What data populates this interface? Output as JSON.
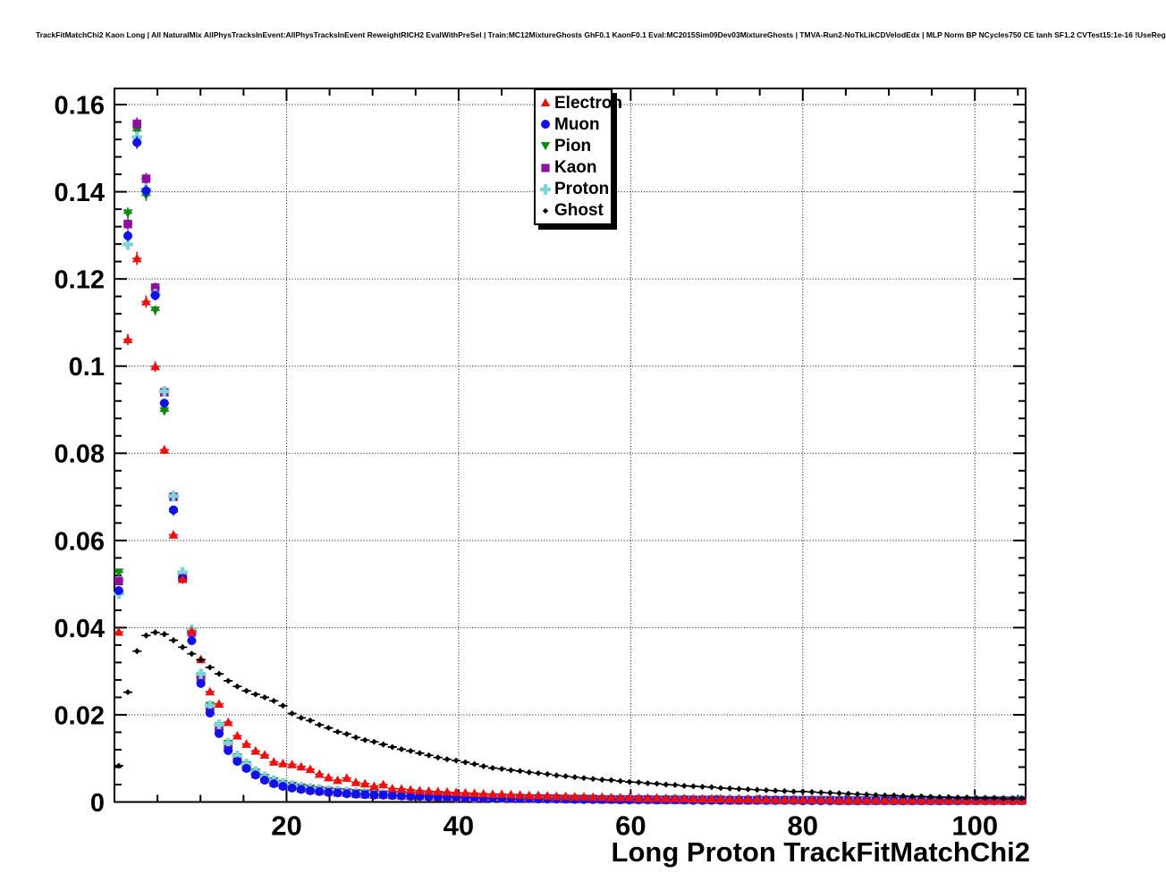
{
  "page": {
    "title": "TrackFitMatchChi2 Kaon Long | All NaturalMix AllPhysTracksInEvent:AllPhysTracksInEvent ReweightRICH2 EvalWithPreSel | Train:MC12MixtureGhosts GhF0.1 KaonF0.1 Eval:MC2015Sim09Dev03MixtureGhosts | TMVA-Run2-NoTkLikCDVelodEdx | MLP Norm BP NCycles750 CE tanh SF1.2 CVTest15:1e-16 !UseReg"
  },
  "chart_data": {
    "type": "scatter",
    "title": "TrackFitMatchChi2 Kaon Long | All NaturalMix AllPhysTracksInEvent:AllPhysTracksInEvent ReweightRICH2 EvalWithPreSel | Train:MC12MixtureGhosts GhF0.1 KaonF0.1 Eval:MC2015Sim09Dev03MixtureGhosts | TMVA-Run2-NoTkLikCDVelodEdx | MLP Norm BP NCycles750 CE tanh SF1.2 CVTest15:1e-16 !UseReg",
    "xlabel": "Long Proton TrackFitMatchChi2",
    "ylabel": "",
    "xlim": [
      0,
      105.9
    ],
    "ylim": [
      0,
      0.1637
    ],
    "grid": true,
    "grid_style": "dotted",
    "legend_position": "top-center-inside",
    "x_major_ticks": [
      20,
      40,
      60,
      80,
      100
    ],
    "x_tick_labels": [
      "20",
      "40",
      "60",
      "80",
      "100"
    ],
    "x_minor_step": 5,
    "y_major_ticks": [
      0,
      0.02,
      0.04,
      0.06,
      0.08,
      0.1,
      0.12,
      0.14,
      0.16
    ],
    "y_tick_labels": [
      "0",
      "0.02",
      "0.04",
      "0.06",
      "0.08",
      "0.1",
      "0.12",
      "0.14",
      "0.16"
    ],
    "y_minor_step": 0.004,
    "x": [
      0.5,
      1.56,
      2.62,
      3.68,
      4.74,
      5.8,
      6.86,
      7.92,
      8.98,
      10.04,
      11.1,
      12.16,
      13.22,
      14.28,
      15.34,
      16.4,
      17.46,
      18.52,
      19.58,
      20.64,
      21.7,
      22.76,
      23.82,
      24.88,
      25.94,
      27,
      28.06,
      29.12,
      30.18,
      31.24,
      32.3,
      33.36,
      34.42,
      35.48,
      36.54,
      37.6,
      38.66,
      39.72,
      40.78,
      41.84,
      42.9,
      43.96,
      45.02,
      46.08,
      47.14,
      48.2,
      49.26,
      50.32,
      51.38,
      52.44,
      53.5,
      54.56,
      55.62,
      56.68,
      57.74,
      58.8,
      59.86,
      60.92,
      61.98,
      63.04,
      64.1,
      65.16,
      66.22,
      67.28,
      68.34,
      69.4,
      70.46,
      71.52,
      72.58,
      73.64,
      74.7,
      75.76,
      76.82,
      77.88,
      78.94,
      80,
      81.06,
      82.12,
      83.18,
      84.24,
      85.3,
      86.36,
      87.42,
      88.48,
      89.54,
      90.6,
      91.66,
      92.72,
      93.78,
      94.84,
      95.9,
      96.96,
      98.02,
      99.08,
      100.14,
      101.2,
      102.26,
      103.32,
      104.38,
      105.44
    ],
    "series": [
      {
        "name": "Electron",
        "color": "#ec1010",
        "marker": "triangle-up",
        "values": [
          0.039,
          0.1061,
          0.1247,
          0.1148,
          0.0999,
          0.0808,
          0.0613,
          0.0511,
          0.0392,
          0.0327,
          0.0253,
          0.0225,
          0.0183,
          0.0152,
          0.0133,
          0.0117,
          0.0108,
          0.0092,
          0.0088,
          0.0086,
          0.0081,
          0.0075,
          0.0064,
          0.0056,
          0.005,
          0.0055,
          0.0045,
          0.0042,
          0.0036,
          0.004,
          0.0031,
          0.003,
          0.0028,
          0.0026,
          0.0025,
          0.0024,
          0.0023,
          0.0022,
          0.0021,
          0.002,
          0.0019,
          0.0018,
          0.0018,
          0.0017,
          0.0016,
          0.0015,
          0.0015,
          0.0014,
          0.0013,
          0.0013,
          0.0012,
          0.0012,
          0.0011,
          0.0011,
          0.001,
          0.001,
          0.001,
          0.0009,
          0.0009,
          0.0009,
          0.0008,
          0.0008,
          0.0008,
          0.0007,
          0.0007,
          0.0007,
          0.0007,
          0.0006,
          0.0006,
          0.0006,
          0.0006,
          0.0006,
          0.0005,
          0.0005,
          0.0005,
          0.0005,
          0.0005,
          0.0005,
          0.0005,
          0.0004,
          0.0004,
          0.0004,
          0.0004,
          0.0004,
          0.0004,
          0.0004,
          0.0004,
          0.0004,
          0.0004,
          0.0004,
          0.0004,
          0.0004,
          0.0004,
          0.0003,
          0.0003,
          0.0003,
          0.0003,
          0.0003,
          0.0003,
          0.0003
        ]
      },
      {
        "name": "Muon",
        "color": "#1212e8",
        "marker": "circle",
        "values": [
          0.0485,
          0.1299,
          0.1513,
          0.1402,
          0.1162,
          0.0915,
          0.067,
          0.0513,
          0.037,
          0.0272,
          0.0204,
          0.0157,
          0.0118,
          0.0093,
          0.0077,
          0.0062,
          0.005,
          0.0042,
          0.0036,
          0.0032,
          0.0029,
          0.0026,
          0.0024,
          0.0022,
          0.0021,
          0.0019,
          0.0018,
          0.0017,
          0.0016,
          0.0016,
          0.0015,
          0.0014,
          0.0013,
          0.0013,
          0.0012,
          0.0012,
          0.0011,
          0.0011,
          0.001,
          0.001,
          0.0009,
          0.0009,
          0.0009,
          0.0008,
          0.0008,
          0.0008,
          0.0007,
          0.0007,
          0.0007,
          0.0007,
          0.0006,
          0.0006,
          0.0006,
          0.0006,
          0.0006,
          0.0005,
          0.0005,
          0.0005,
          0.0005,
          0.0005,
          0.0005,
          0.0005,
          0.0005,
          0.0004,
          0.0004,
          0.0004,
          0.0004,
          0.0004,
          0.0004,
          0.0004,
          0.0004,
          0.0004,
          0.0004,
          0.0004,
          0.0004,
          0.0003,
          0.0003,
          0.0003,
          0.0003,
          0.0003,
          0.0003,
          0.0003,
          0.0003,
          0.0003,
          0.0003,
          0.0003,
          0.0003,
          0.0003,
          0.0003,
          0.0003,
          0.0003,
          0.0003,
          0.0003,
          0.0003,
          0.0003,
          0.0003,
          0.0003,
          0.0003,
          0.0003,
          0.0003
        ]
      },
      {
        "name": "Pion",
        "color": "#118a11",
        "marker": "triangle-down",
        "values": [
          0.0527,
          0.1351,
          0.154,
          0.1392,
          0.1128,
          0.0897,
          0.0666,
          0.051,
          0.0389,
          0.029,
          0.0221,
          0.0174,
          0.0134,
          0.0103,
          0.0085,
          0.0068,
          0.0056,
          0.0048,
          0.0042,
          0.0038,
          0.0034,
          0.0031,
          0.0028,
          0.0026,
          0.0024,
          0.0023,
          0.0021,
          0.002,
          0.0019,
          0.0018,
          0.0017,
          0.0016,
          0.0016,
          0.0015,
          0.0014,
          0.0014,
          0.0013,
          0.0013,
          0.0012,
          0.0012,
          0.0011,
          0.0011,
          0.001,
          0.001,
          0.001,
          0.0009,
          0.0009,
          0.0009,
          0.0008,
          0.0008,
          0.0008,
          0.0007,
          0.0007,
          0.0007,
          0.0007,
          0.0007,
          0.0006,
          0.0006,
          0.0006,
          0.0006,
          0.0006,
          0.0006,
          0.0006,
          0.0005,
          0.0005,
          0.0005,
          0.0005,
          0.0005,
          0.0005,
          0.0005,
          0.0005,
          0.0005,
          0.0005,
          0.0005,
          0.0004,
          0.0004,
          0.0004,
          0.0004,
          0.0004,
          0.0004,
          0.0004,
          0.0004,
          0.0004,
          0.0004,
          0.0004,
          0.0004,
          0.0004,
          0.0004,
          0.0004,
          0.0004,
          0.0004,
          0.0004,
          0.0004,
          0.0004,
          0.0004,
          0.0004,
          0.0004,
          0.0004,
          0.0004,
          0.0004
        ]
      },
      {
        "name": "Kaon",
        "color": "#8f0f9e",
        "marker": "square",
        "values": [
          0.0507,
          0.1326,
          0.1556,
          0.143,
          0.118,
          0.094,
          0.07,
          0.0515,
          0.0389,
          0.0285,
          0.0213,
          0.0166,
          0.0126,
          0.0098,
          0.008,
          0.0064,
          0.0053,
          0.0044,
          0.0039,
          0.0035,
          0.0031,
          0.0028,
          0.0026,
          0.0024,
          0.0022,
          0.0021,
          0.0019,
          0.0018,
          0.0017,
          0.0017,
          0.0016,
          0.0015,
          0.0014,
          0.0014,
          0.0013,
          0.0012,
          0.0012,
          0.0011,
          0.0011,
          0.001,
          0.001,
          0.001,
          0.0009,
          0.0009,
          0.0009,
          0.0008,
          0.0008,
          0.0008,
          0.0008,
          0.0007,
          0.0007,
          0.0007,
          0.0007,
          0.0006,
          0.0006,
          0.0006,
          0.0006,
          0.0006,
          0.0006,
          0.0005,
          0.0005,
          0.0005,
          0.0005,
          0.0005,
          0.0005,
          0.0005,
          0.0005,
          0.0004,
          0.0004,
          0.0004,
          0.0004,
          0.0004,
          0.0004,
          0.0004,
          0.0004,
          0.0004,
          0.0004,
          0.0004,
          0.0004,
          0.0003,
          0.0003,
          0.0003,
          0.0003,
          0.0003,
          0.0003,
          0.0003,
          0.0003,
          0.0003,
          0.0003,
          0.0003,
          0.0003,
          0.0003,
          0.0003,
          0.0003,
          0.0003,
          0.0003,
          0.0003,
          0.0003,
          0.0003,
          0.0003
        ]
      },
      {
        "name": "Proton",
        "color": "#7fd2d6",
        "marker": "plus",
        "values": [
          0.0478,
          0.1279,
          0.1525,
          0.1405,
          0.1165,
          0.0942,
          0.0702,
          0.0527,
          0.0395,
          0.0294,
          0.0221,
          0.0177,
          0.0135,
          0.0106,
          0.0087,
          0.007,
          0.0058,
          0.0049,
          0.0043,
          0.0038,
          0.0034,
          0.0031,
          0.0029,
          0.0026,
          0.0025,
          0.0023,
          0.0021,
          0.002,
          0.0019,
          0.0018,
          0.0017,
          0.0017,
          0.0016,
          0.0015,
          0.0014,
          0.0014,
          0.0013,
          0.0012,
          0.0012,
          0.0011,
          0.0011,
          0.001,
          0.001,
          0.001,
          0.0009,
          0.0009,
          0.0009,
          0.0008,
          0.0008,
          0.0008,
          0.0008,
          0.0007,
          0.0007,
          0.0007,
          0.0007,
          0.0007,
          0.0006,
          0.0006,
          0.0006,
          0.0006,
          0.0006,
          0.0006,
          0.0005,
          0.0005,
          0.0005,
          0.0005,
          0.0005,
          0.0005,
          0.0005,
          0.0005,
          0.0005,
          0.0004,
          0.0004,
          0.0004,
          0.0004,
          0.0004,
          0.0004,
          0.0004,
          0.0004,
          0.0004,
          0.0004,
          0.0004,
          0.0004,
          0.0004,
          0.0004,
          0.0004,
          0.0004,
          0.0004,
          0.0004,
          0.0004,
          0.0004,
          0.0004,
          0.0004,
          0.0004,
          0.0004,
          0.0004,
          0.0004,
          0.0004,
          0.0004,
          0.0004
        ]
      },
      {
        "name": "Ghost",
        "color": "#000000",
        "marker": "diamond",
        "values": [
          0.0083,
          0.0252,
          0.0346,
          0.0382,
          0.0389,
          0.0385,
          0.0371,
          0.0355,
          0.034,
          0.0326,
          0.0309,
          0.0294,
          0.0278,
          0.0265,
          0.0255,
          0.0247,
          0.024,
          0.0232,
          0.0221,
          0.0203,
          0.0193,
          0.0187,
          0.0177,
          0.017,
          0.0161,
          0.0156,
          0.0148,
          0.0142,
          0.0138,
          0.0132,
          0.0126,
          0.0121,
          0.0117,
          0.0112,
          0.0107,
          0.0102,
          0.0098,
          0.0095,
          0.0091,
          0.0087,
          0.0082,
          0.0078,
          0.0076,
          0.0073,
          0.0071,
          0.0068,
          0.0066,
          0.0064,
          0.0061,
          0.0059,
          0.0057,
          0.0055,
          0.0053,
          0.0051,
          0.005,
          0.0048,
          0.0046,
          0.0045,
          0.0043,
          0.0042,
          0.004,
          0.0039,
          0.0037,
          0.0036,
          0.0035,
          0.0034,
          0.0032,
          0.0031,
          0.003,
          0.0029,
          0.0028,
          0.0027,
          0.0026,
          0.0025,
          0.0024,
          0.0024,
          0.0023,
          0.0022,
          0.0021,
          0.002,
          0.0019,
          0.0018,
          0.0017,
          0.0016,
          0.0015,
          0.0015,
          0.0014,
          0.0013,
          0.0013,
          0.0012,
          0.0011,
          0.0011,
          0.001,
          0.001,
          0.0009,
          0.0009,
          0.0009,
          0.0008,
          0.0008,
          0.0008
        ]
      }
    ]
  }
}
